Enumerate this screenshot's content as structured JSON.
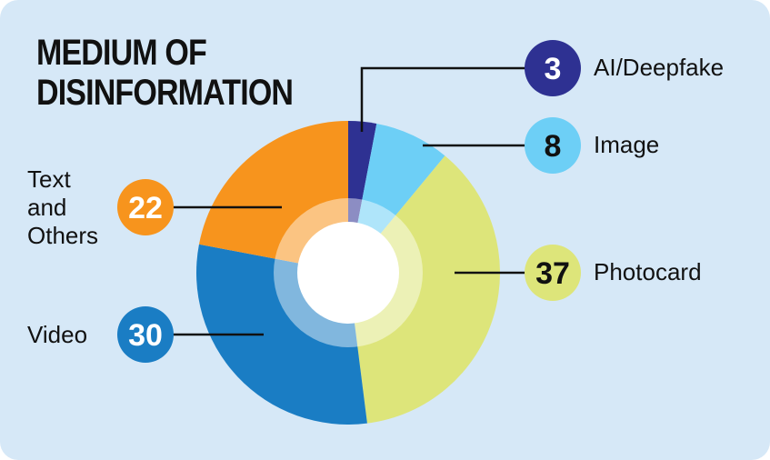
{
  "chart_data": {
    "type": "pie",
    "title": "MEDIUM OF DISINFORMATION",
    "categories": [
      "AI/Deepfake",
      "Image",
      "Photocard",
      "Video",
      "Text and Others"
    ],
    "values": [
      3,
      8,
      37,
      30,
      22
    ],
    "colors": [
      "#2e3192",
      "#6dcff6",
      "#dde57a",
      "#1a7dc4",
      "#f7941d"
    ]
  }
}
